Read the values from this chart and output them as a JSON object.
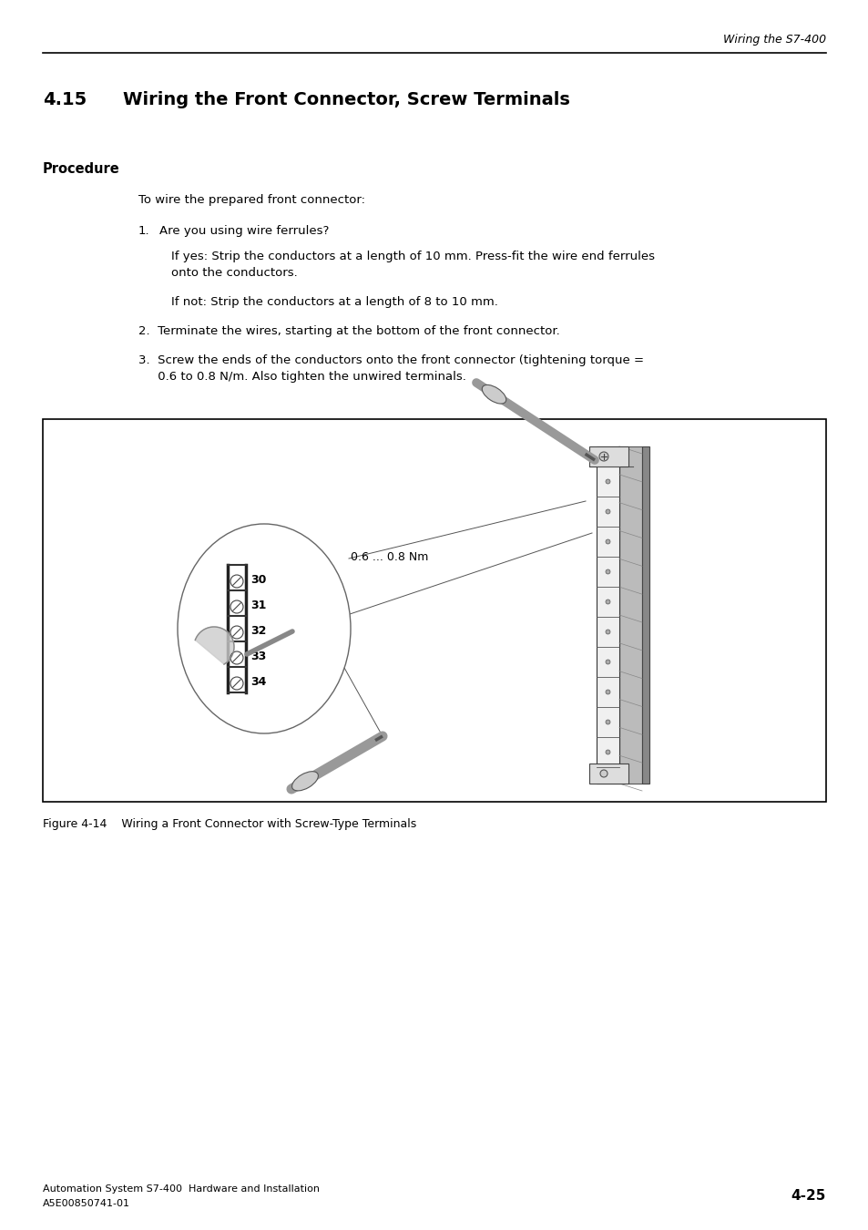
{
  "page_header_text": "Wiring the S7-400",
  "section_number": "4.15",
  "section_title": "Wiring the Front Connector, Screw Terminals",
  "section_label": "Procedure",
  "intro_text": "To wire the prepared front connector:",
  "step1_num": "1.",
  "step1_text": "Are you using wire ferrules?",
  "step1_sub1": "If yes: Strip the conductors at a length of 10 mm. Press-fit the wire end ferrules\nonto the conductors.",
  "step1_sub2": "If not: Strip the conductors at a length of 8 to 10 mm.",
  "step2_text": "2.  Terminate the wires, starting at the bottom of the front connector.",
  "step3_text": "3.  Screw the ends of the conductors onto the front connector (tightening torque =\n     0.6 to 0.8 N/m. Also tighten the unwired terminals.",
  "figure_caption": "Figure 4-14    Wiring a Front Connector with Screw-Type Terminals",
  "footer_left_line1": "Automation System S7-400  Hardware and Installation",
  "footer_left_line2": "A5E00850741-01",
  "footer_right": "4-25",
  "bg_color": "#ffffff",
  "text_color": "#000000",
  "diagram_label": "0.6 ... 0.8 Nm",
  "terminal_numbers": [
    "30",
    "31",
    "32",
    "33",
    "34"
  ]
}
